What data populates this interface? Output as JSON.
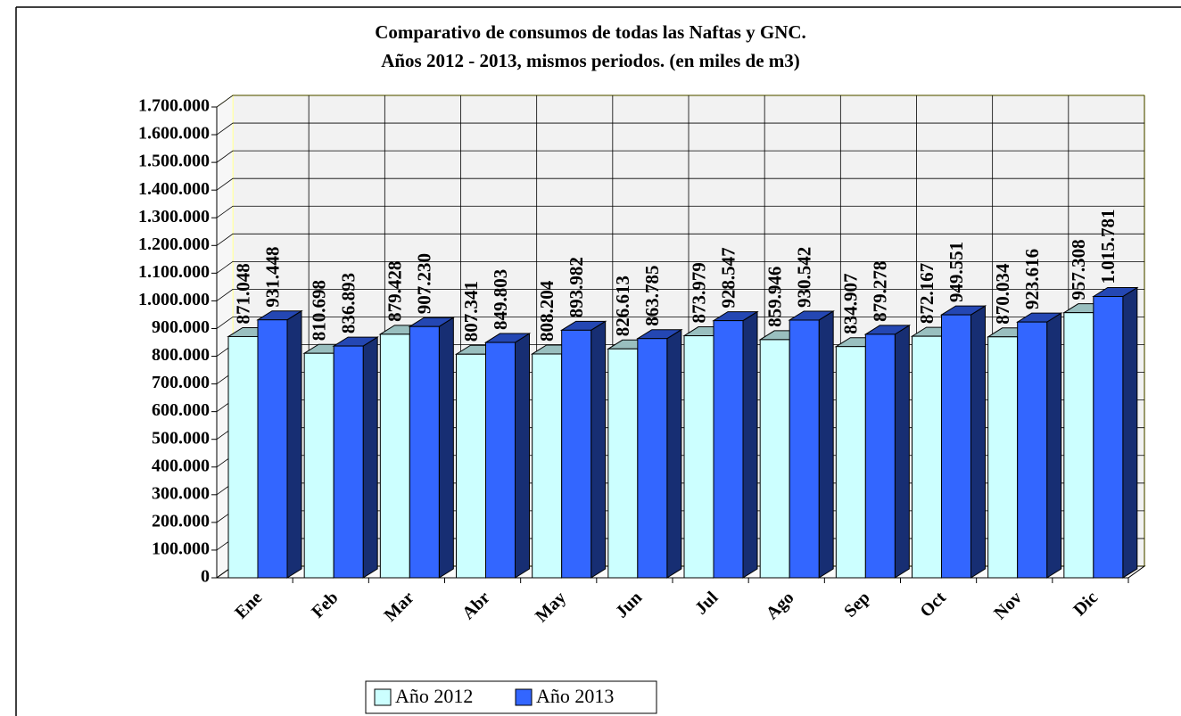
{
  "chart_data": {
    "type": "bar3d",
    "title": "Comparativo de consumos de todas las Naftas y GNC.",
    "subtitle": "Años 2012 - 2013, mismos periodos. (en miles de m3)",
    "categories": [
      "Ene",
      "Feb",
      "Mar",
      "Abr",
      "May",
      "Jun",
      "Jul",
      "Ago",
      "Sep",
      "Oct",
      "Nov",
      "Dic"
    ],
    "series": [
      {
        "name": "Año 2012",
        "color": "#ccffff",
        "values": [
          871048,
          810698,
          879428,
          807341,
          808204,
          826613,
          873979,
          859946,
          834907,
          872167,
          870034,
          957308
        ],
        "value_labels": [
          "871.048",
          "810.698",
          "879.428",
          "807.341",
          "808.204",
          "826.613",
          "873.979",
          "859.946",
          "834.907",
          "872.167",
          "870.034",
          "957.308"
        ]
      },
      {
        "name": "Año 2013",
        "color": "#3366ff",
        "values": [
          931448,
          836893,
          907230,
          849803,
          893982,
          863785,
          928547,
          930542,
          879278,
          949551,
          923616,
          1015781
        ],
        "value_labels": [
          "931.448",
          "836.893",
          "907.230",
          "849.803",
          "893.982",
          "863.785",
          "928.547",
          "930.542",
          "879.278",
          "949.551",
          "923.616",
          "1.015.781"
        ]
      }
    ],
    "ylim": [
      0,
      1700000
    ],
    "yticks": [
      0,
      {
        "value": 100000,
        "label": "100.000"
      },
      {
        "value": 200000,
        "label": "200.000"
      },
      {
        "value": 300000,
        "label": "300.000"
      },
      {
        "value": 400000,
        "label": "400.000"
      },
      {
        "value": 500000,
        "label": "500.000"
      },
      {
        "value": 600000,
        "label": "600.000"
      },
      {
        "value": 700000,
        "label": "700.000"
      },
      {
        "value": 800000,
        "label": "800.000"
      },
      {
        "value": 900000,
        "label": "900.000"
      },
      {
        "value": 1000000,
        "label": "1.000.000"
      },
      {
        "value": 1100000,
        "label": "1.100.000"
      },
      {
        "value": 1200000,
        "label": "1.200.000"
      },
      {
        "value": 1300000,
        "label": "1.300.000"
      },
      {
        "value": 1400000,
        "label": "1.400.000"
      },
      {
        "value": 1500000,
        "label": "1.500.000"
      },
      {
        "value": 1600000,
        "label": "1.600.000"
      },
      {
        "value": 1700000,
        "label": "1.700.000"
      }
    ],
    "grid": true,
    "legend": "bottom"
  }
}
